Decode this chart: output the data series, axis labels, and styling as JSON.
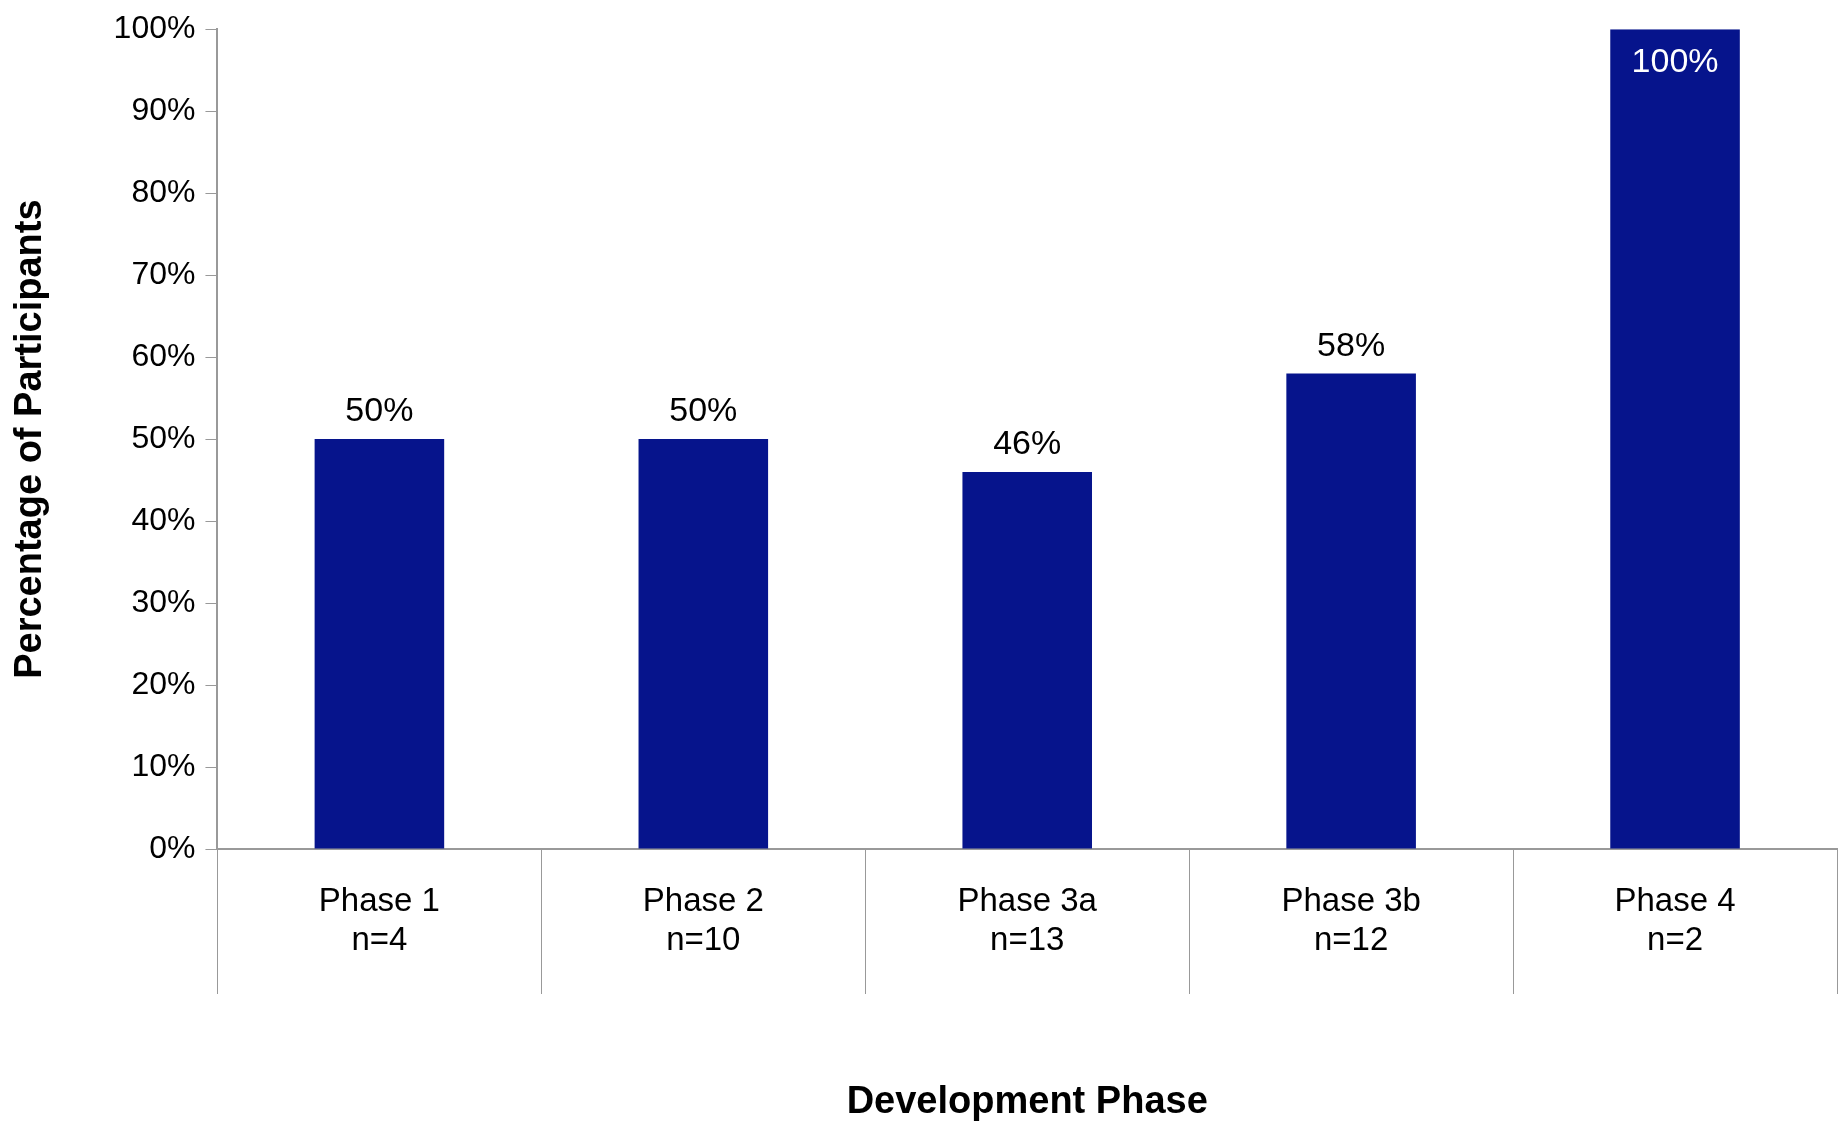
{
  "chart_data": {
    "type": "bar",
    "xlabel": "Development Phase",
    "ylabel": "Percentage of Participants",
    "categories": [
      "Phase 1\nn=4",
      "Phase 2\nn=10",
      "Phase 3a\nn=13",
      "Phase 3b\nn=12",
      "Phase 4\nn=2"
    ],
    "values": [
      50,
      50,
      46,
      58,
      100
    ],
    "color": "#06148c",
    "ylim": [
      0,
      100
    ],
    "yticks": [
      {
        "value": 0,
        "label": "0%"
      },
      {
        "value": 10,
        "label": "10%"
      },
      {
        "value": 20,
        "label": "20%"
      },
      {
        "value": 30,
        "label": "30%"
      },
      {
        "value": 40,
        "label": "40%"
      },
      {
        "value": 50,
        "label": "50%"
      },
      {
        "value": 60,
        "label": "60%"
      },
      {
        "value": 70,
        "label": "70%"
      },
      {
        "value": 80,
        "label": "80%"
      },
      {
        "value": 90,
        "label": "90%"
      },
      {
        "value": 100,
        "label": "100%"
      }
    ],
    "value_labels": [
      "50%",
      "50%",
      "46%",
      "58%",
      "100%"
    ],
    "grid": false,
    "legend": false
  }
}
